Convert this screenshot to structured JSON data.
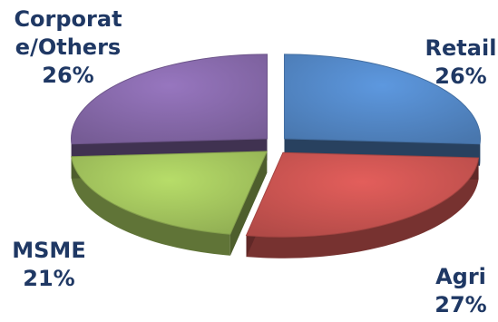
{
  "chart_data": {
    "type": "pie",
    "style": "3d-exploded",
    "title": "",
    "slices": [
      {
        "name": "Retail",
        "value": 26,
        "label": "26%",
        "color": "#4f81bd"
      },
      {
        "name": "Agri",
        "value": 27,
        "label": "27%",
        "color": "#c0504d"
      },
      {
        "name": "MSME",
        "value": 21,
        "label": "21%",
        "color": "#9bbb59"
      },
      {
        "name": "Corporate/Others",
        "name_lines": [
          "Corporat",
          "e/Others"
        ],
        "value": 26,
        "label": "26%",
        "color": "#8064a2"
      }
    ],
    "label_color": "#1f3864",
    "legend": "none"
  }
}
